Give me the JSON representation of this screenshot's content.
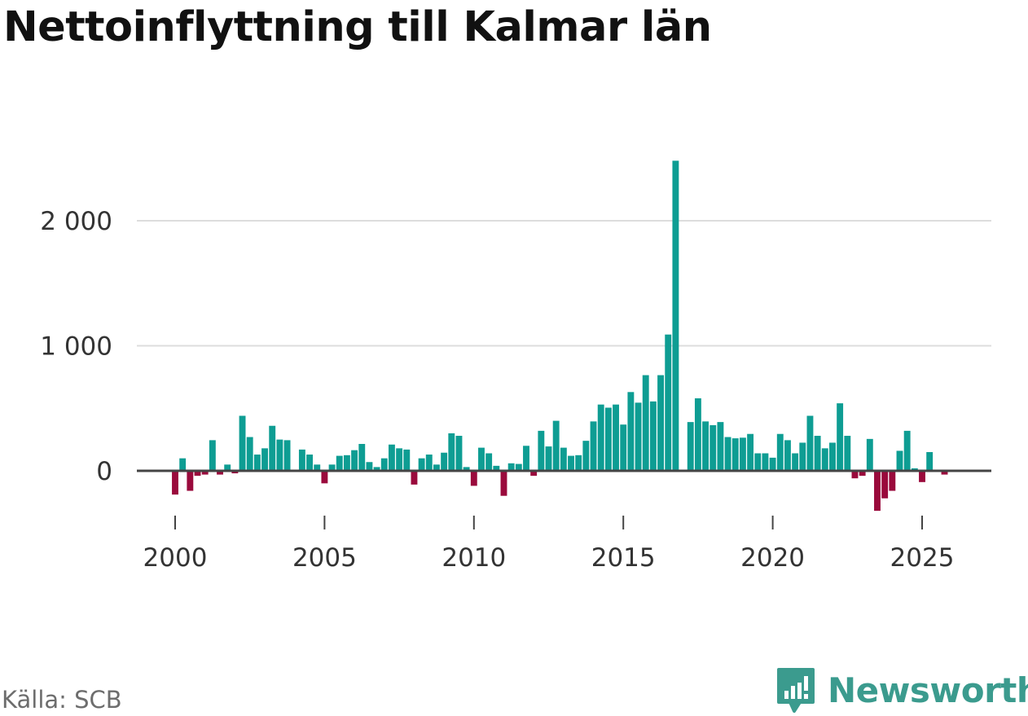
{
  "title": "Nettoinflyttning till Kalmar län",
  "source": "Källa: SCB",
  "brand": "Newsworthy",
  "colors": {
    "positive": "#0e9d93",
    "negative": "#9a0a3c",
    "grid": "#dddddd",
    "zero_line": "#444444",
    "brand": "#3b9b8e"
  },
  "chart_data": {
    "type": "bar",
    "title": "Nettoinflyttning till Kalmar län",
    "xlabel": "",
    "ylabel": "",
    "ylim": [
      -400,
      2600
    ],
    "xlim": [
      1998.6,
      2027.2
    ],
    "grid": true,
    "y_ticks": [
      {
        "value": 0,
        "label": "0"
      },
      {
        "value": 1000,
        "label": "1 000"
      },
      {
        "value": 2000,
        "label": "2 000"
      }
    ],
    "x_ticks": [
      {
        "value": 2000,
        "label": "2000"
      },
      {
        "value": 2005,
        "label": "2005"
      },
      {
        "value": 2010,
        "label": "2010"
      },
      {
        "value": 2015,
        "label": "2015"
      },
      {
        "value": 2020,
        "label": "2020"
      },
      {
        "value": 2025,
        "label": "2025"
      }
    ],
    "x_start": 2000.0,
    "x_step": 0.25,
    "values": [
      -190,
      100,
      -160,
      -40,
      -30,
      245,
      -30,
      50,
      -20,
      440,
      270,
      130,
      180,
      360,
      250,
      245,
      0,
      170,
      130,
      50,
      -100,
      50,
      120,
      125,
      165,
      215,
      70,
      30,
      100,
      210,
      180,
      170,
      -110,
      100,
      130,
      50,
      145,
      300,
      280,
      30,
      -120,
      185,
      140,
      40,
      -200,
      60,
      55,
      200,
      -40,
      320,
      195,
      400,
      185,
      120,
      125,
      240,
      395,
      530,
      505,
      530,
      370,
      630,
      545,
      765,
      555,
      765,
      1090,
      2480,
      0,
      390,
      580,
      395,
      365,
      390,
      270,
      260,
      265,
      295,
      140,
      140,
      105,
      295,
      245,
      140,
      225,
      440,
      280,
      180,
      225,
      540,
      280,
      -60,
      -40,
      255,
      -320,
      -220,
      -160,
      160,
      320,
      20,
      -90,
      150,
      0,
      -30
    ]
  }
}
